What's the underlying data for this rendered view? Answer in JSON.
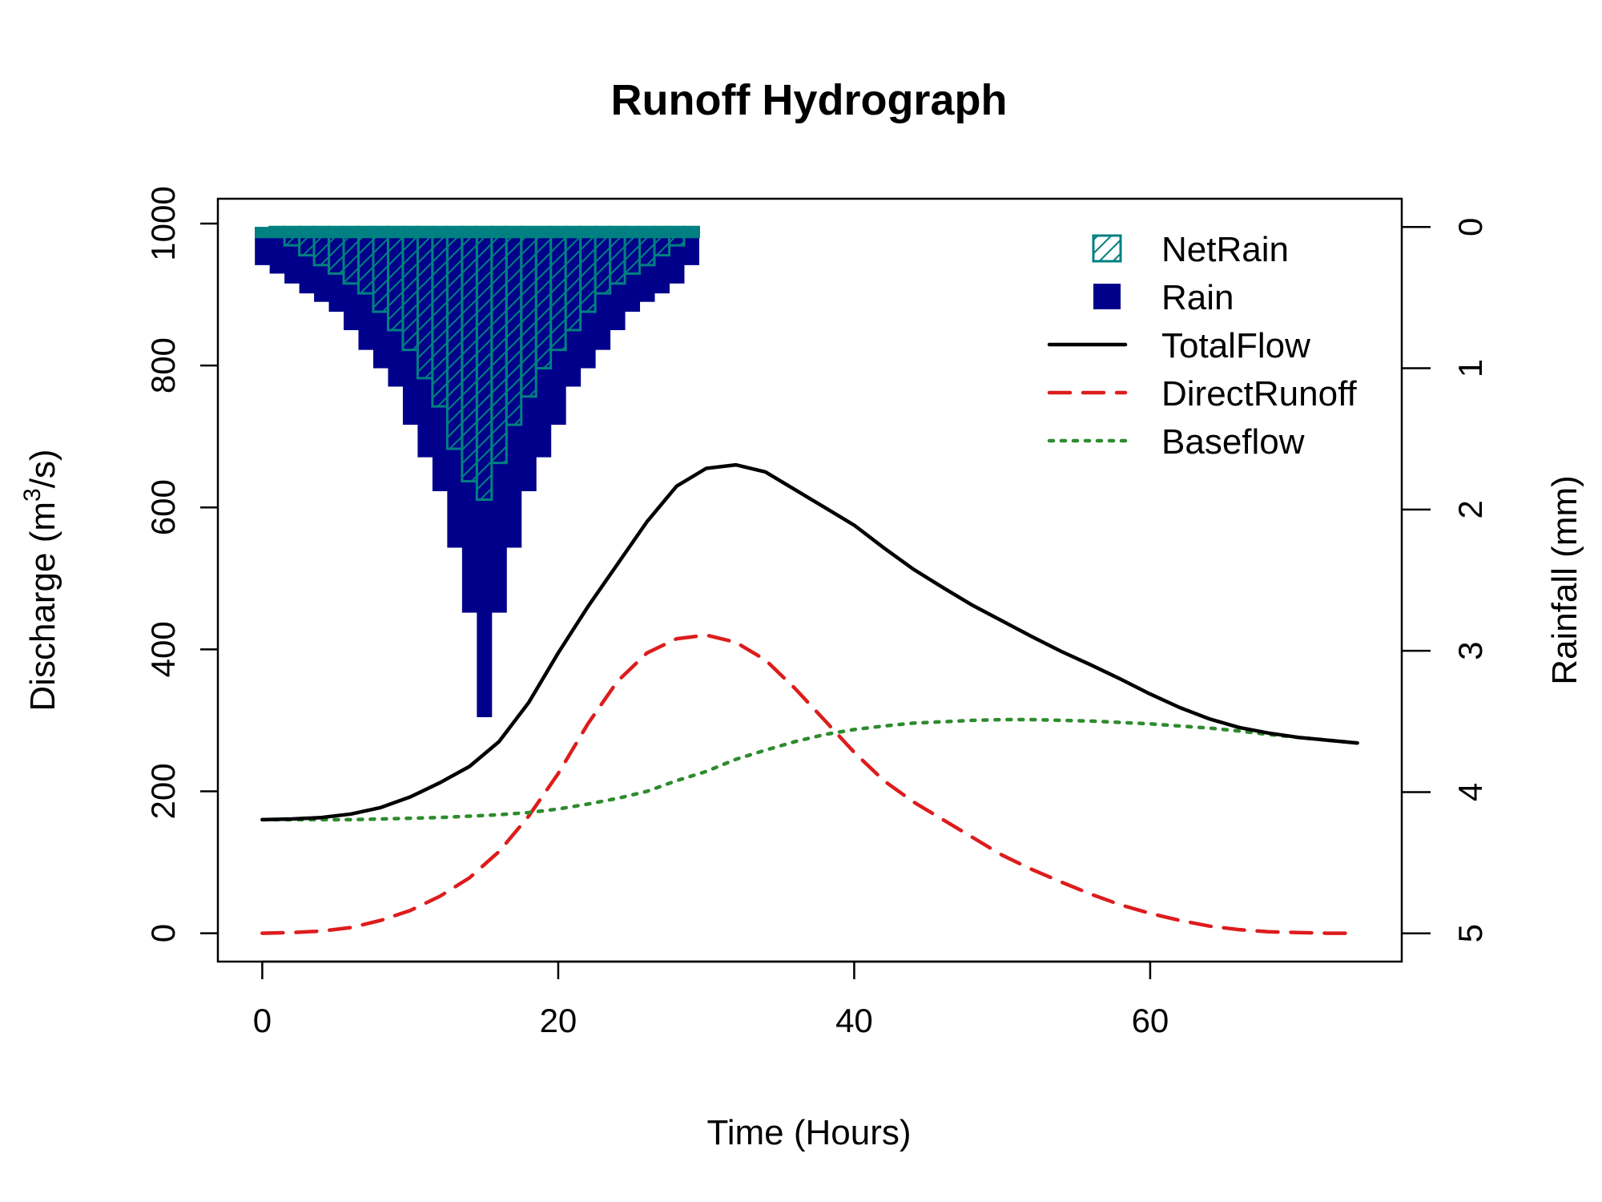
{
  "chart_data": {
    "type": "line",
    "title": "Runoff Hydrograph",
    "xlabel": "Time (Hours)",
    "ylabel": "Discharge (m³/s)",
    "ylabel_parts": {
      "pre": "Discharge (m",
      "sup": "3",
      "post": "/s)"
    },
    "y2label": "Rainfall (mm)",
    "xlim": [
      -3,
      77
    ],
    "ylim": [
      -40,
      1035
    ],
    "y2lim": [
      5.2,
      -0.2
    ],
    "x_ticks": [
      0,
      20,
      40,
      60
    ],
    "x_tick_labels": [
      "0",
      "20",
      "40",
      "60"
    ],
    "y_ticks": [
      0,
      200,
      400,
      600,
      800,
      1000
    ],
    "y_tick_labels": [
      "0",
      "200",
      "400",
      "600",
      "800",
      "1000"
    ],
    "y2_ticks": [
      0,
      1,
      2,
      3,
      4,
      5
    ],
    "y2_tick_labels": [
      "0",
      "1",
      "2",
      "3",
      "4",
      "5"
    ],
    "grid": false,
    "legend_position": "top-right",
    "colors": {
      "rain": "#00008B",
      "netrain": "#008080",
      "total": "#000000",
      "direct": "#DD1C1C",
      "base": "#2E8B2E"
    },
    "legend": [
      {
        "label": "NetRain",
        "kind": "hatch",
        "color": "#008080"
      },
      {
        "label": "Rain",
        "kind": "fill",
        "color": "#00008B"
      },
      {
        "label": "TotalFlow",
        "kind": "solid",
        "color": "#000000"
      },
      {
        "label": "DirectRunoff",
        "kind": "dashed",
        "color": "#DD1C1C"
      },
      {
        "label": "Baseflow",
        "kind": "dotted",
        "color": "#2E8B2E"
      }
    ],
    "rain_bars": {
      "name": "Rain",
      "time": [
        0,
        1,
        2,
        3,
        4,
        5,
        6,
        7,
        8,
        9,
        10,
        11,
        12,
        13,
        14,
        15,
        16,
        17,
        18,
        19,
        20,
        21,
        22,
        23,
        24,
        25,
        26,
        27,
        28,
        29
      ],
      "rain_mm": [
        0.27,
        0.33,
        0.4,
        0.47,
        0.53,
        0.6,
        0.73,
        0.87,
        1.0,
        1.13,
        1.4,
        1.63,
        1.87,
        2.27,
        2.73,
        3.47,
        2.73,
        2.27,
        1.87,
        1.63,
        1.4,
        1.13,
        1.0,
        0.87,
        0.73,
        0.6,
        0.53,
        0.47,
        0.4,
        0.27
      ],
      "netrain_mm": [
        0.0,
        0.07,
        0.13,
        0.2,
        0.27,
        0.33,
        0.4,
        0.47,
        0.6,
        0.73,
        0.87,
        1.07,
        1.27,
        1.57,
        1.8,
        1.93,
        1.67,
        1.4,
        1.2,
        1.0,
        0.87,
        0.73,
        0.6,
        0.47,
        0.4,
        0.33,
        0.27,
        0.2,
        0.13,
        0.07
      ]
    },
    "series": [
      {
        "name": "TotalFlow",
        "x": [
          0,
          2,
          4,
          6,
          8,
          10,
          12,
          14,
          16,
          18,
          20,
          22,
          24,
          26,
          28,
          30,
          32,
          34,
          36,
          38,
          40,
          42,
          44,
          46,
          48,
          50,
          52,
          54,
          56,
          58,
          60,
          62,
          64,
          66,
          68,
          70,
          72,
          74
        ],
        "y": [
          160,
          161,
          163,
          168,
          177,
          192,
          212,
          235,
          270,
          325,
          395,
          460,
          520,
          580,
          630,
          655,
          660,
          650,
          625,
          600,
          575,
          543,
          513,
          487,
          462,
          440,
          418,
          397,
          378,
          358,
          337,
          318,
          302,
          290,
          282,
          276,
          272,
          268
        ]
      },
      {
        "name": "DirectRunoff",
        "x": [
          0,
          2,
          4,
          6,
          8,
          10,
          12,
          14,
          16,
          18,
          20,
          22,
          24,
          26,
          28,
          30,
          32,
          34,
          36,
          38,
          40,
          42,
          44,
          46,
          48,
          50,
          52,
          54,
          56,
          58,
          60,
          62,
          64,
          66,
          68,
          70,
          72,
          74
        ],
        "y": [
          0,
          1,
          3,
          8,
          18,
          32,
          52,
          78,
          115,
          165,
          225,
          295,
          355,
          395,
          415,
          420,
          410,
          385,
          345,
          300,
          255,
          215,
          185,
          160,
          135,
          110,
          90,
          72,
          55,
          40,
          28,
          18,
          10,
          5,
          2,
          1,
          0,
          0
        ]
      },
      {
        "name": "Baseflow",
        "x": [
          0,
          2,
          4,
          6,
          8,
          10,
          12,
          14,
          16,
          18,
          20,
          22,
          24,
          26,
          28,
          30,
          32,
          34,
          36,
          38,
          40,
          42,
          44,
          46,
          48,
          50,
          52,
          54,
          56,
          58,
          60,
          62,
          64,
          66,
          68,
          70,
          72,
          74
        ],
        "y": [
          160,
          160,
          160,
          160,
          161,
          162,
          163,
          165,
          167,
          170,
          175,
          182,
          190,
          200,
          215,
          228,
          245,
          258,
          270,
          280,
          287,
          292,
          296,
          298,
          300,
          301,
          301,
          300,
          299,
          297,
          295,
          292,
          289,
          285,
          280,
          276,
          272,
          268
        ]
      }
    ]
  }
}
